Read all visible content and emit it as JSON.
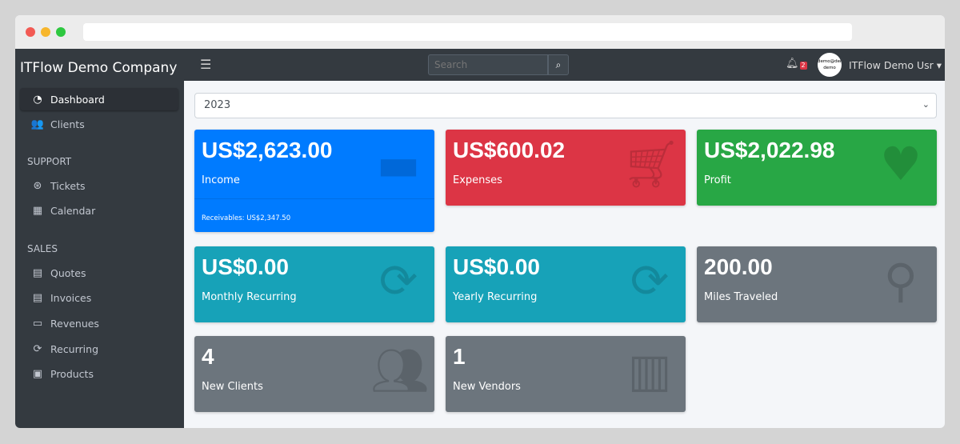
{
  "sidebar": {
    "brand": "ITFlow Demo Company",
    "items": [
      {
        "label": "Dashboard",
        "icon": "tachometer-icon"
      },
      {
        "label": "Clients",
        "icon": "users-icon"
      }
    ],
    "support_header": "SUPPORT",
    "support": [
      {
        "label": "Tickets",
        "icon": "life-ring-icon"
      },
      {
        "label": "Calendar",
        "icon": "calendar-icon"
      }
    ],
    "sales_header": "SALES",
    "sales": [
      {
        "label": "Quotes",
        "icon": "file-icon"
      },
      {
        "label": "Invoices",
        "icon": "invoice-icon"
      },
      {
        "label": "Revenues",
        "icon": "credit-card-icon"
      },
      {
        "label": "Recurring",
        "icon": "sync-icon"
      },
      {
        "label": "Products",
        "icon": "box-icon"
      }
    ]
  },
  "topbar": {
    "search_placeholder": "Search",
    "notifications": "2",
    "avatar_text": "demo@demo demo",
    "user": "ITFlow Demo Usr"
  },
  "year_select": "2023",
  "colors": {
    "income": "#007bff",
    "expenses": "#dc3545",
    "profit": "#28a745",
    "recurring": "#17a2b8",
    "gray": "#6c757d"
  },
  "cards": [
    {
      "value": "US$2,623.00",
      "label": "Income",
      "footer": "Receivables: US$2,347.50",
      "icon": "credit-card-icon"
    },
    {
      "value": "US$600.02",
      "label": "Expenses",
      "icon": "shopping-cart-icon"
    },
    {
      "value": "US$2,022.98",
      "label": "Profit",
      "icon": "heart-icon"
    },
    {
      "value": "US$0.00",
      "label": "Monthly Recurring",
      "icon": "sync-icon"
    },
    {
      "value": "US$0.00",
      "label": "Yearly Recurring",
      "icon": "sync-icon"
    },
    {
      "value": "200.00",
      "label": "Miles Traveled",
      "icon": "route-icon"
    },
    {
      "value": "4",
      "label": "New Clients",
      "icon": "users-icon"
    },
    {
      "value": "1",
      "label": "New Vendors",
      "icon": "building-icon"
    }
  ]
}
